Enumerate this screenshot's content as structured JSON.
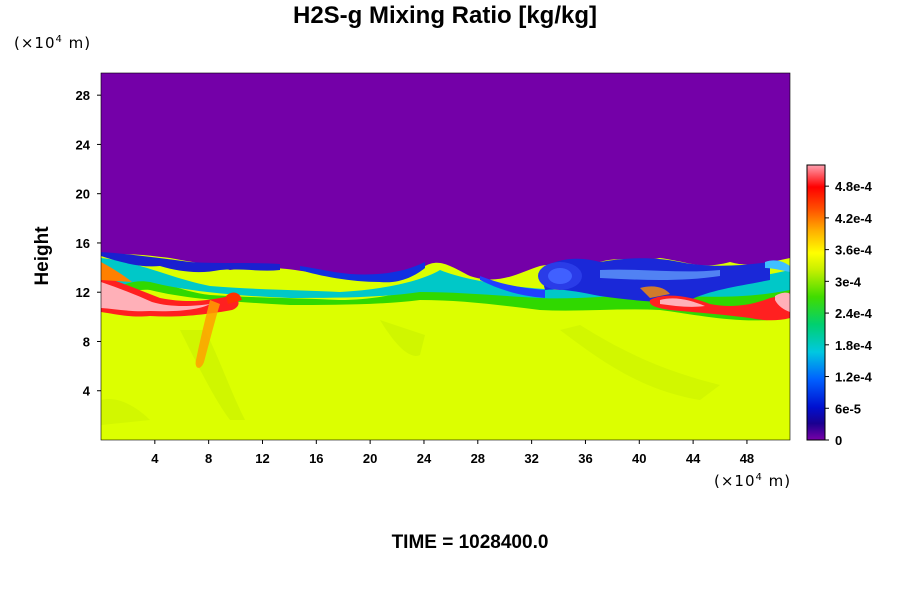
{
  "title": "H2S-g Mixing Ratio [kg/kg]",
  "y_unit_prefix": "(×10",
  "y_unit_exp": "4",
  "y_unit_suffix": " m)",
  "x_unit_prefix": "(×10",
  "x_unit_exp": "4",
  "x_unit_suffix": " m)",
  "ylabel": "Height",
  "footer": "TIME = 1028400.0",
  "chart_data": {
    "type": "heatmap",
    "title": "H2S-g Mixing Ratio [kg/kg]",
    "xlabel": "",
    "ylabel": "Height",
    "x_ticks": [
      "4",
      "8",
      "12",
      "16",
      "20",
      "24",
      "28",
      "32",
      "36",
      "40",
      "44",
      "48"
    ],
    "x_tick_values": [
      4,
      8,
      12,
      16,
      20,
      24,
      28,
      32,
      36,
      40,
      44,
      48
    ],
    "y_ticks": [
      "4",
      "8",
      "12",
      "16",
      "20",
      "24",
      "28"
    ],
    "y_tick_values": [
      4,
      8,
      12,
      16,
      20,
      24,
      28
    ],
    "xlim": [
      0,
      51.2
    ],
    "ylim": [
      0,
      29.8
    ],
    "colorbar": {
      "labels": [
        "0",
        "6e-5",
        "1.2e-4",
        "1.8e-4",
        "2.4e-4",
        "3e-4",
        "3.6e-4",
        "4.2e-4",
        "4.8e-4"
      ],
      "values": [
        0,
        6e-05,
        0.00012,
        0.00018,
        0.00024,
        0.0003,
        0.00036,
        0.00042,
        0.00048
      ],
      "range": [
        0,
        0.00052
      ]
    },
    "field_summary": {
      "upper_region_value": 0,
      "lower_region_value": 0.00033,
      "interface_height_approx": [
        12,
        15
      ],
      "high_value_patches": [
        {
          "x": [
            0,
            10
          ],
          "y": [
            10,
            13
          ],
          "value": 0.0005
        },
        {
          "x": [
            40,
            51.2
          ],
          "y": [
            9.5,
            12
          ],
          "value": 0.00045
        }
      ]
    },
    "colors": {
      "background_top": "#7400a8",
      "background_bottom": "#dcff00",
      "high": "#ffb0b8",
      "red": "#ff2020"
    },
    "grid": false
  }
}
